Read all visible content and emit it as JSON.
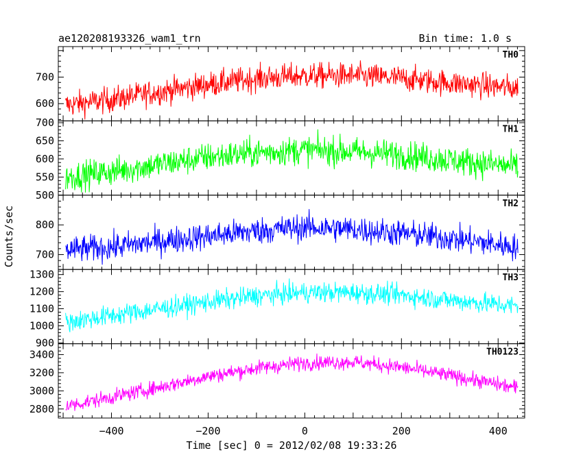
{
  "chart_data": {
    "type": "line",
    "title": "ae120208193326_wam1_trn",
    "subtitle": "Bin time: 1.0 s",
    "xlabel": "Time [sec] 0 = 2012/02/08 19:33:26",
    "ylabel": "Counts/sec",
    "xlim": [
      -510,
      455
    ],
    "x_ticks": [
      -400,
      -200,
      0,
      200,
      400
    ],
    "x_tick_labels": [
      "−400",
      "−200",
      "0",
      "200",
      "400"
    ],
    "data_xrange": [
      -495,
      441
    ],
    "panels": [
      {
        "name": "TH0",
        "color": "#ff0000",
        "ylim": [
          535,
          815
        ],
        "y_ticks": [
          600,
          700
        ],
        "y_tick_labels": [
          "600",
          "700"
        ],
        "trend": [
          [
            -495,
            595
          ],
          [
            -400,
            615
          ],
          [
            -300,
            645
          ],
          [
            -200,
            672
          ],
          [
            -100,
            695
          ],
          [
            0,
            705
          ],
          [
            100,
            705
          ],
          [
            200,
            695
          ],
          [
            300,
            678
          ],
          [
            441,
            658
          ]
        ],
        "noise": 34
      },
      {
        "name": "TH1",
        "color": "#00ff00",
        "ylim": [
          500,
          705
        ],
        "y_ticks": [
          500,
          550,
          600,
          650,
          700
        ],
        "y_tick_labels": [
          "500",
          "550",
          "600",
          "650",
          "700"
        ],
        "trend": [
          [
            -495,
            550
          ],
          [
            -400,
            565
          ],
          [
            -300,
            585
          ],
          [
            -200,
            605
          ],
          [
            -100,
            617
          ],
          [
            0,
            625
          ],
          [
            100,
            620
          ],
          [
            200,
            612
          ],
          [
            300,
            597
          ],
          [
            441,
            578
          ]
        ],
        "noise": 28
      },
      {
        "name": "TH2",
        "color": "#0000ff",
        "ylim": [
          650,
          900
        ],
        "y_ticks": [
          700,
          800
        ],
        "y_tick_labels": [
          "700",
          "800"
        ],
        "trend": [
          [
            -495,
            715
          ],
          [
            -400,
            725
          ],
          [
            -300,
            745
          ],
          [
            -200,
            762
          ],
          [
            -100,
            780
          ],
          [
            0,
            792
          ],
          [
            100,
            785
          ],
          [
            200,
            772
          ],
          [
            300,
            755
          ],
          [
            441,
            725
          ]
        ],
        "noise": 32
      },
      {
        "name": "TH3",
        "color": "#00ffff",
        "ylim": [
          895,
          1330
        ],
        "y_ticks": [
          900,
          1000,
          1100,
          1200,
          1300
        ],
        "y_tick_labels": [
          "900",
          "1000",
          "1100",
          "1200",
          "1300"
        ],
        "trend": [
          [
            -495,
            1020
          ],
          [
            -400,
            1060
          ],
          [
            -300,
            1100
          ],
          [
            -200,
            1140
          ],
          [
            -100,
            1175
          ],
          [
            0,
            1195
          ],
          [
            100,
            1195
          ],
          [
            200,
            1180
          ],
          [
            300,
            1150
          ],
          [
            441,
            1115
          ]
        ],
        "noise": 42
      },
      {
        "name": "TH0123",
        "color": "#ff00ff",
        "ylim": [
          2700,
          3520
        ],
        "y_ticks": [
          2800,
          3000,
          3200,
          3400
        ],
        "y_tick_labels": [
          "2800",
          "3000",
          "3200",
          "3400"
        ],
        "trend": [
          [
            -495,
            2830
          ],
          [
            -400,
            2930
          ],
          [
            -300,
            3040
          ],
          [
            -200,
            3160
          ],
          [
            -100,
            3250
          ],
          [
            0,
            3310
          ],
          [
            100,
            3320
          ],
          [
            200,
            3260
          ],
          [
            300,
            3170
          ],
          [
            441,
            3030
          ]
        ],
        "noise": 58
      }
    ]
  }
}
